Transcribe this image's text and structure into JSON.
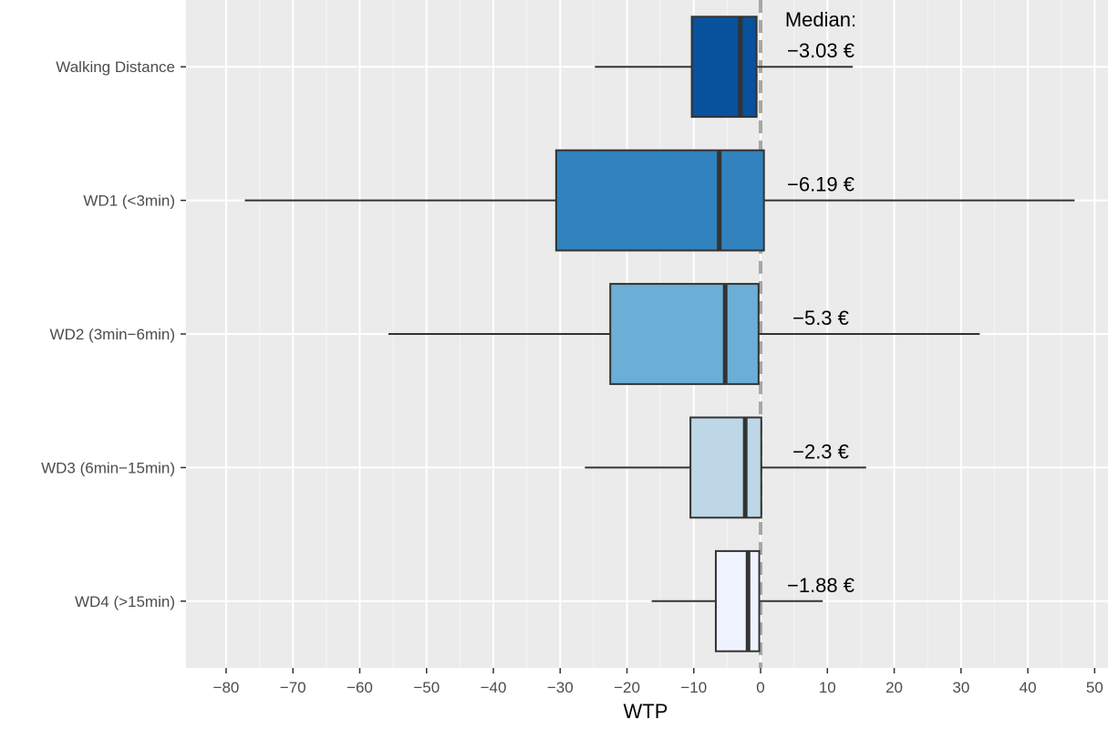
{
  "chart_data": {
    "type": "boxplot",
    "orientation": "horizontal",
    "xlabel": "WTP",
    "ylabel": "",
    "xlim": [
      -86,
      52
    ],
    "xticks": [
      -80,
      -70,
      -60,
      -50,
      -40,
      -30,
      -20,
      -10,
      0,
      10,
      20,
      30,
      40,
      50
    ],
    "xtick_labels": [
      "−80",
      "−70",
      "−60",
      "−50",
      "−40",
      "−30",
      "−20",
      "−10",
      "0",
      "10",
      "20",
      "30",
      "40",
      "50"
    ],
    "reference_line": {
      "x": 0,
      "style": "dashed",
      "color": "#a6a6a6"
    },
    "annotation_header": "Median:",
    "grid": true,
    "panel_background": "#ebebeb",
    "categories": [
      {
        "label": "Walking Distance",
        "whisker_low": -24.8,
        "q1": -10.3,
        "median": -3.03,
        "q3": -0.6,
        "whisker_high": 13.8,
        "color": "#08519c",
        "median_label": "−3.03 €"
      },
      {
        "label": "WD1 (<3min)",
        "whisker_low": -77.2,
        "q1": -30.6,
        "median": -6.19,
        "q3": 0.5,
        "whisker_high": 47.0,
        "color": "#3182bd",
        "median_label": "−6.19 €"
      },
      {
        "label": "WD2 (3min−6min)",
        "whisker_low": -55.7,
        "q1": -22.5,
        "median": -5.3,
        "q3": -0.3,
        "whisker_high": 32.8,
        "color": "#6baed6",
        "median_label": "−5.3 €"
      },
      {
        "label": "WD3 (6min−15min)",
        "whisker_low": -26.3,
        "q1": -10.5,
        "median": -2.3,
        "q3": 0.1,
        "whisker_high": 15.8,
        "color": "#bdd7e7",
        "median_label": "−2.3 €"
      },
      {
        "label": "WD4 (>15min)",
        "whisker_low": -16.3,
        "q1": -6.7,
        "median": -1.88,
        "q3": -0.2,
        "whisker_high": 9.3,
        "color": "#eff3ff",
        "median_label": "−1.88 €"
      }
    ]
  }
}
